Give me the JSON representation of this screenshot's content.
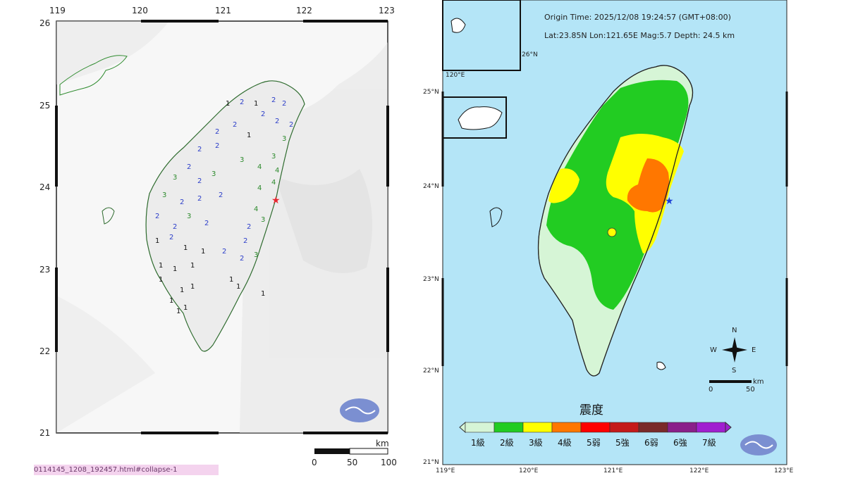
{
  "left_map": {
    "lon_ticks": [
      "119",
      "120",
      "121",
      "122",
      "123"
    ],
    "lat_ticks": [
      "26",
      "25",
      "24",
      "23",
      "22",
      "21"
    ],
    "scale": {
      "labels": [
        "0",
        "50",
        "100"
      ],
      "unit": "km"
    },
    "epicenter_color": "#e8262f",
    "station_intensities": [
      {
        "v": "1"
      },
      {
        "v": "2"
      },
      {
        "v": "3"
      },
      {
        "v": "4"
      }
    ],
    "colors": {
      "intensity_1": "#111111",
      "intensity_2": "#2c3ec9",
      "intensity_3": "#2e8b2e",
      "intensity_4": "#2e8b2e"
    }
  },
  "right_map": {
    "origin_time": "Origin Time:  2025/12/08   19:24:57   (GMT+08:00)",
    "location": "Lat:23.85N  Lon:121.65E  Mag:5.7  Depth: 24.5 km",
    "lat_ticks": [
      "25°N",
      "24°N",
      "23°N",
      "22°N",
      "21°N"
    ],
    "lon_ticks": [
      "119°E",
      "120°E",
      "121°E",
      "122°E",
      "123°E"
    ],
    "inset_labels": [
      "26°N",
      "120°E"
    ],
    "compass": {
      "n": "N",
      "s": "S",
      "e": "E",
      "w": "W"
    },
    "scale": {
      "labels": [
        "0",
        "50"
      ],
      "unit": "km"
    },
    "epicenter_color": "#1b3fd6",
    "legend": {
      "title": "震度",
      "levels": [
        {
          "label": "1級",
          "color": "#d6f5d6"
        },
        {
          "label": "2級",
          "color": "#22cc22"
        },
        {
          "label": "3級",
          "color": "#ffff00"
        },
        {
          "label": "4級",
          "color": "#ff7700"
        },
        {
          "label": "5弱",
          "color": "#ff0000"
        },
        {
          "label": "5強",
          "color": "#c41a1a"
        },
        {
          "label": "6弱",
          "color": "#7a2a2a"
        },
        {
          "label": "6強",
          "color": "#8a1f8a"
        },
        {
          "label": "7級",
          "color": "#a01fd0"
        }
      ]
    }
  },
  "url_fragment": "0114145_1208_192457.html#collapse-1"
}
